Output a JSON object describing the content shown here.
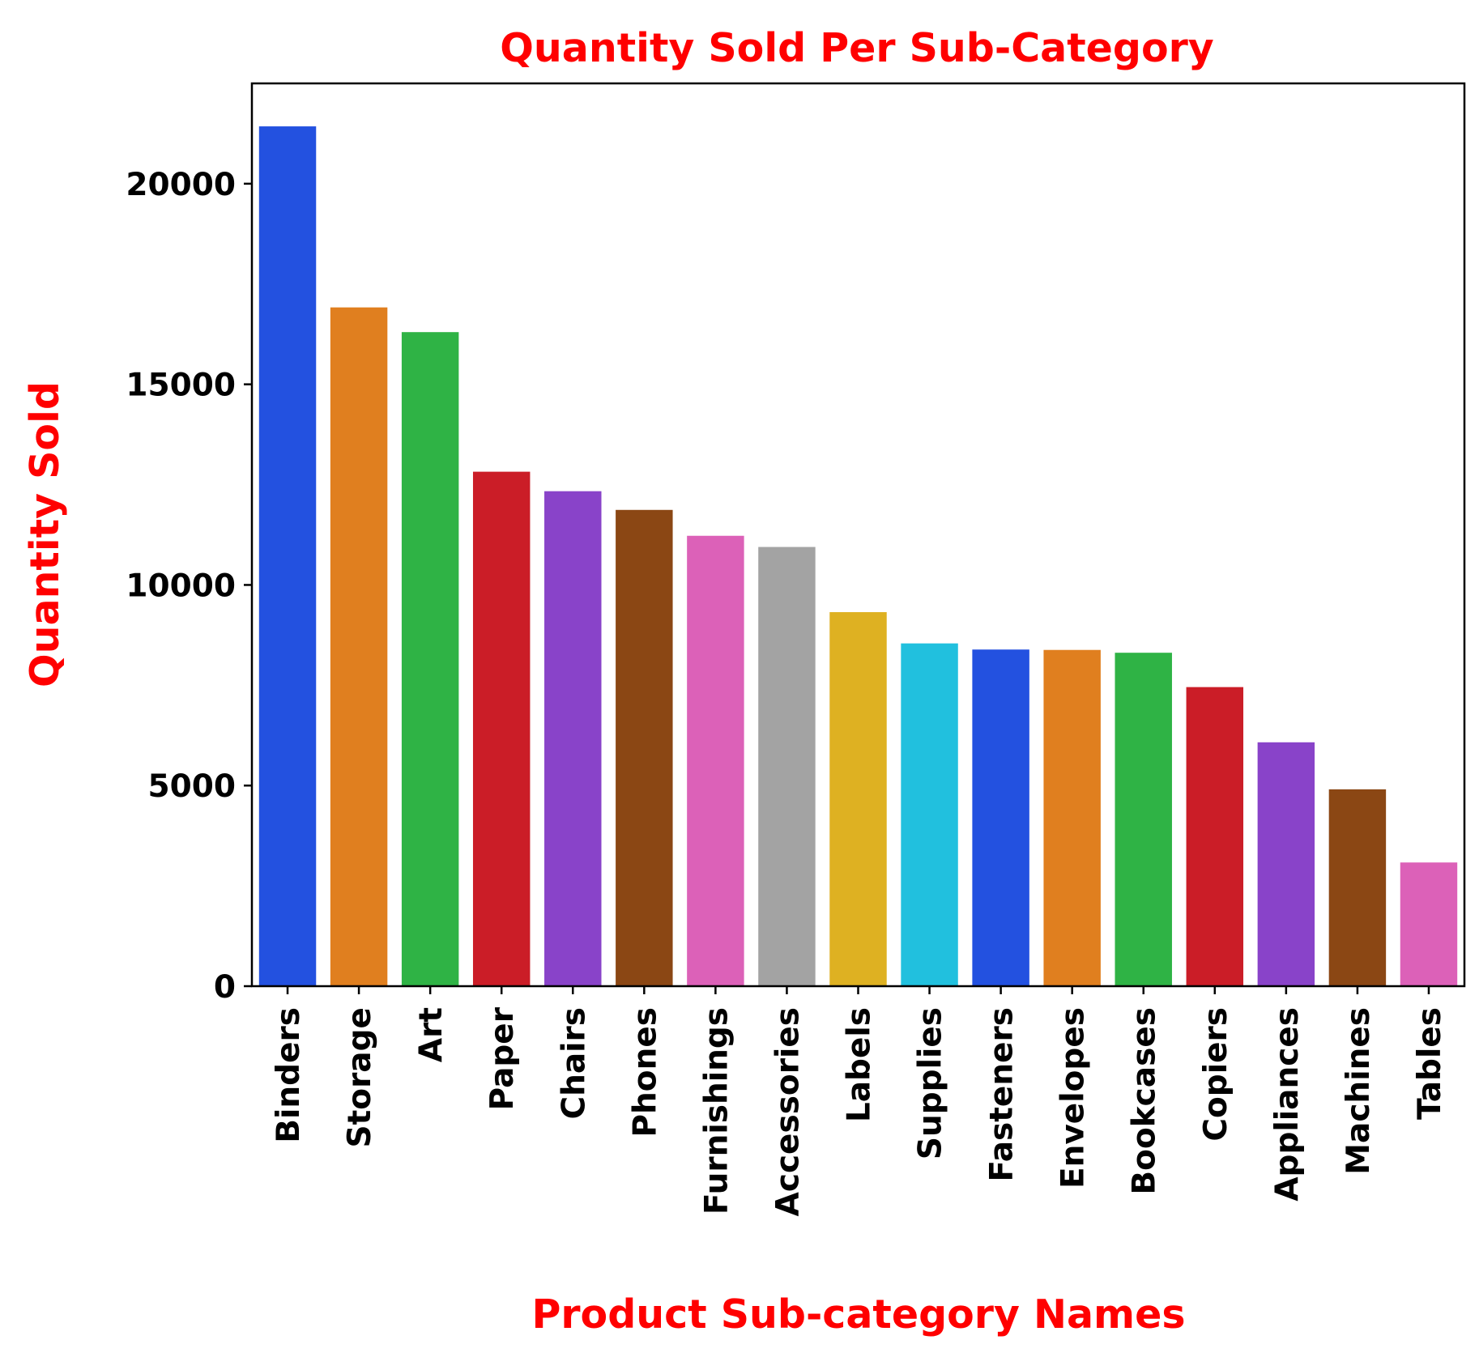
{
  "chart_data": {
    "type": "bar",
    "title": "Quantity Sold Per Sub-Category",
    "xlabel": "Product Sub-category Names",
    "ylabel": "Quantity Sold",
    "categories": [
      "Binders",
      "Storage",
      "Art",
      "Paper",
      "Chairs",
      "Phones",
      "Furnishings",
      "Accessories",
      "Labels",
      "Supplies",
      "Fasteners",
      "Envelopes",
      "Bookcases",
      "Copiers",
      "Appliances",
      "Machines",
      "Tables"
    ],
    "values": [
      21429,
      16917,
      16301,
      12822,
      12336,
      11870,
      11225,
      10946,
      9322,
      8543,
      8390,
      8380,
      8310,
      7454,
      6078,
      4906,
      3083
    ],
    "colors": [
      "#2351e0",
      "#e07f1f",
      "#2fb345",
      "#cb1d27",
      "#8943c9",
      "#8b4714",
      "#dc61b8",
      "#a3a3a3",
      "#deb122",
      "#21c0de",
      "#2351e0",
      "#e07f1f",
      "#2fb345",
      "#cb1d27",
      "#8943c9",
      "#8b4714",
      "#dc61b8"
    ],
    "yticks": [
      0,
      5000,
      10000,
      15000,
      20000
    ],
    "ylim": [
      0,
      22500
    ],
    "grid": false,
    "title_color": "#ff0000",
    "axis_label_color": "#ff0000"
  }
}
